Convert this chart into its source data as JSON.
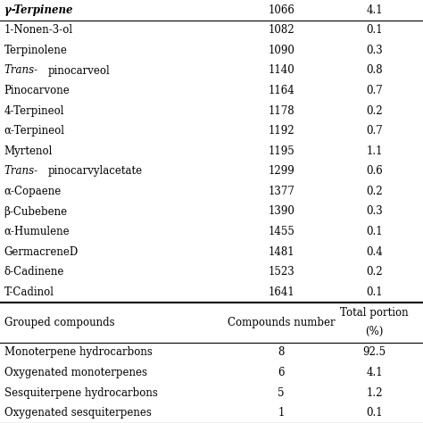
{
  "top_row": [
    "γ-Terpinene",
    "1066",
    "4.1"
  ],
  "rows": [
    [
      "1-Nonen-3-ol",
      "1082",
      "0.1"
    ],
    [
      "Terpinolene",
      "1090",
      "0.3"
    ],
    [
      "Trans-pinocarveol",
      "1140",
      "0.8"
    ],
    [
      "Pinocarvone",
      "1164",
      "0.7"
    ],
    [
      "4-Terpineol",
      "1178",
      "0.2"
    ],
    [
      "α-Terpineol",
      "1192",
      "0.7"
    ],
    [
      "Myrtenol",
      "1195",
      "1.1"
    ],
    [
      "Trans-pinocarvylacetate",
      "1299",
      "0.6"
    ],
    [
      "α-Copaene",
      "1377",
      "0.2"
    ],
    [
      "β-Cubebene",
      "1390",
      "0.3"
    ],
    [
      "α-Humulene",
      "1455",
      "0.1"
    ],
    [
      "GermacreneD",
      "1481",
      "0.4"
    ],
    [
      "δ-Cadinene",
      "1523",
      "0.2"
    ],
    [
      "T-Cadinol",
      "1641",
      "0.1"
    ]
  ],
  "group_header": [
    "Grouped compounds",
    "Compounds number",
    "Total portion\n(%)"
  ],
  "group_rows": [
    [
      "Monoterpene hydrocarbons",
      "8",
      "92.5"
    ],
    [
      "Oxygenated monoterpenes",
      "6",
      "4.1"
    ],
    [
      "Sesquiterpene hydrocarbons",
      "5",
      "1.2"
    ],
    [
      "Oxygenated sesquiterpenes",
      "1",
      "0.1"
    ]
  ],
  "bg_color": "#ffffff",
  "text_color": "#000000",
  "line_color": "#000000",
  "font_size": 8.5
}
